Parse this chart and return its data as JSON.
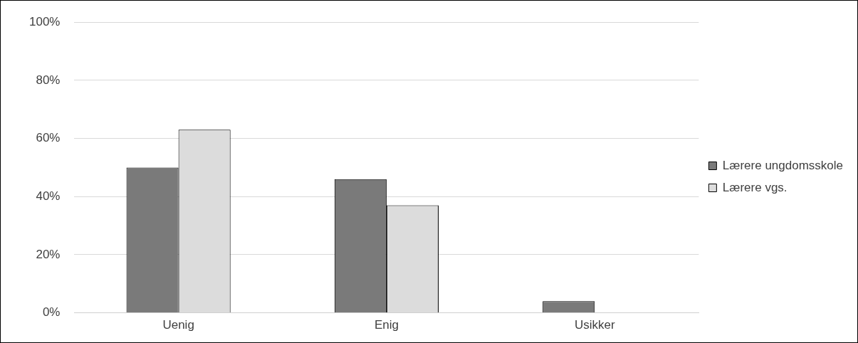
{
  "chart_data": {
    "type": "bar",
    "categories": [
      "Uenig",
      "Enig",
      "Usikker"
    ],
    "series": [
      {
        "name": "Lærere ungdomsskole",
        "color": "#7a7a7a",
        "values": [
          50,
          46,
          4
        ]
      },
      {
        "name": "Lærere vgs.",
        "color": "#dcdcdc",
        "values": [
          63,
          37,
          0
        ]
      }
    ],
    "ylim": [
      0,
      100
    ],
    "yticks": [
      {
        "value": 0,
        "label": "0%"
      },
      {
        "value": 20,
        "label": "20%"
      },
      {
        "value": 40,
        "label": "40%"
      },
      {
        "value": 60,
        "label": "60%"
      },
      {
        "value": 80,
        "label": "80%"
      },
      {
        "value": 100,
        "label": "100%"
      }
    ],
    "grid": "y",
    "legend": "right"
  }
}
